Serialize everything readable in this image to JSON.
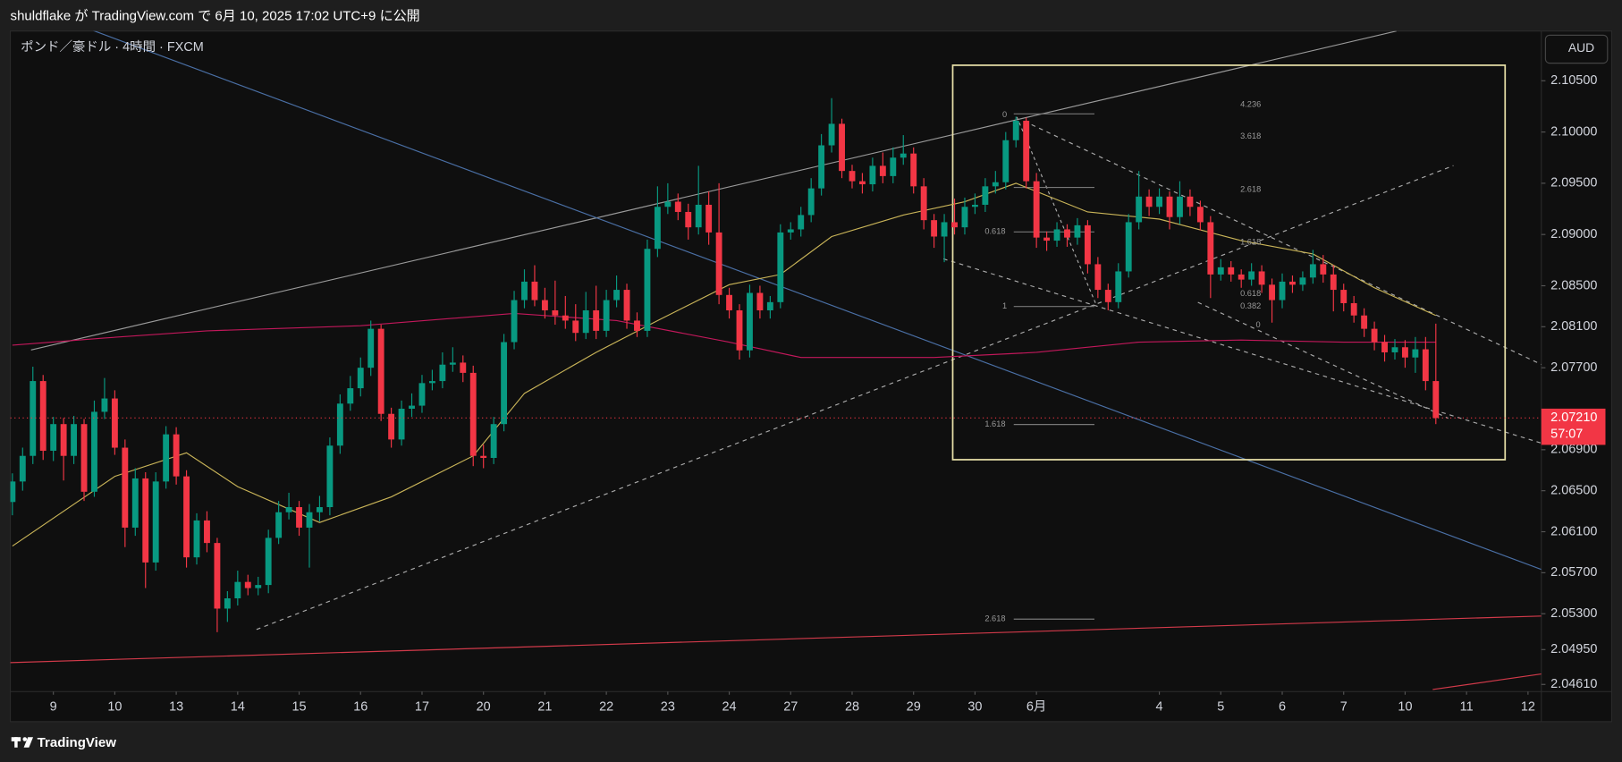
{
  "header": "shuldflake が TradingView.com で 6月 10, 2025 17:02 UTC+9 に公開",
  "symbol": "ポンド／豪ドル · 4時間 · FXCM",
  "currency": "AUD",
  "footer": "TradingView",
  "fib_labels": [
    "0",
    "0.618",
    "1",
    "1.618",
    "2.618",
    "4.236",
    "3.618",
    "2.618",
    "1.618",
    "0.618",
    "0.382",
    "0"
  ],
  "chart_data": {
    "type": "candlestick",
    "up_color": "#089981",
    "down_color": "#f23645",
    "grid": false,
    "ylim": [
      2.0454,
      2.10985
    ],
    "yticks": [
      {
        "value": 2.105,
        "label": "2.10500"
      },
      {
        "value": 2.1,
        "label": "2.10000"
      },
      {
        "value": 2.095,
        "label": "2.09500"
      },
      {
        "value": 2.09,
        "label": "2.09000"
      },
      {
        "value": 2.085,
        "label": "2.08500"
      },
      {
        "value": 2.081,
        "label": "2.08100"
      },
      {
        "value": 2.077,
        "label": "2.07700"
      },
      {
        "value": 2.069,
        "label": "2.06900"
      },
      {
        "value": 2.065,
        "label": "2.06500"
      },
      {
        "value": 2.061,
        "label": "2.06100"
      },
      {
        "value": 2.057,
        "label": "2.05700"
      },
      {
        "value": 2.053,
        "label": "2.05300"
      },
      {
        "value": 2.0495,
        "label": "2.04950"
      },
      {
        "value": 2.0461,
        "label": "2.04610"
      }
    ],
    "xlim": [
      -0.2,
      149.3
    ],
    "xticks": [
      {
        "value": 4,
        "label": "9"
      },
      {
        "value": 10,
        "label": "10"
      },
      {
        "value": 16,
        "label": "13"
      },
      {
        "value": 22,
        "label": "14"
      },
      {
        "value": 28,
        "label": "15"
      },
      {
        "value": 34,
        "label": "16"
      },
      {
        "value": 40,
        "label": "17"
      },
      {
        "value": 46,
        "label": "20"
      },
      {
        "value": 52,
        "label": "21"
      },
      {
        "value": 58,
        "label": "22"
      },
      {
        "value": 64,
        "label": "23"
      },
      {
        "value": 70,
        "label": "24"
      },
      {
        "value": 76,
        "label": "27"
      },
      {
        "value": 82,
        "label": "28"
      },
      {
        "value": 88,
        "label": "29"
      },
      {
        "value": 94,
        "label": "30"
      },
      {
        "value": 100,
        "label": "6月"
      },
      {
        "value": 112,
        "label": "4"
      },
      {
        "value": 118,
        "label": "5"
      },
      {
        "value": 124,
        "label": "6"
      },
      {
        "value": 130,
        "label": "7"
      },
      {
        "value": 136,
        "label": "10"
      },
      {
        "value": 142,
        "label": "11"
      },
      {
        "value": 148,
        "label": "12"
      }
    ],
    "last_price": 2.0721,
    "last_price_label": "2.07210",
    "countdown": "57:07",
    "last_price_color": "#f23645",
    "candles": [
      [
        2.0639,
        2.0667,
        2.0626,
        2.0659
      ],
      [
        2.0659,
        2.0692,
        2.065,
        2.0684
      ],
      [
        2.0684,
        2.0771,
        2.0676,
        2.0757
      ],
      [
        2.0757,
        2.0763,
        2.068,
        2.0689
      ],
      [
        2.0689,
        2.0722,
        2.0679,
        2.0715
      ],
      [
        2.0715,
        2.0721,
        2.066,
        2.0684
      ],
      [
        2.0684,
        2.0723,
        2.0676,
        2.0715
      ],
      [
        2.0715,
        2.072,
        2.064,
        2.0649
      ],
      [
        2.0649,
        2.0738,
        2.0644,
        2.0727
      ],
      [
        2.0727,
        2.076,
        2.072,
        2.074
      ],
      [
        2.074,
        2.0748,
        2.0685,
        2.0692
      ],
      [
        2.0692,
        2.07,
        2.0595,
        2.0614
      ],
      [
        2.0614,
        2.0672,
        2.0606,
        2.0662
      ],
      [
        2.0662,
        2.0668,
        2.0555,
        2.058
      ],
      [
        2.058,
        2.0668,
        2.0572,
        2.0659
      ],
      [
        2.0659,
        2.0713,
        2.0652,
        2.0705
      ],
      [
        2.0705,
        2.0712,
        2.0656,
        2.0664
      ],
      [
        2.0664,
        2.067,
        2.0575,
        2.0585
      ],
      [
        2.0585,
        2.0628,
        2.0578,
        2.0621
      ],
      [
        2.0621,
        2.063,
        2.059,
        2.0599
      ],
      [
        2.0599,
        2.0604,
        2.0512,
        2.0535
      ],
      [
        2.0535,
        2.0552,
        2.0522,
        2.0545
      ],
      [
        2.0545,
        2.0572,
        2.0538,
        2.0561
      ],
      [
        2.0561,
        2.0568,
        2.0548,
        2.0555
      ],
      [
        2.0555,
        2.0566,
        2.0548,
        2.0558
      ],
      [
        2.0558,
        2.0612,
        2.055,
        2.0604
      ],
      [
        2.0604,
        2.064,
        2.0598,
        2.0629
      ],
      [
        2.0629,
        2.0648,
        2.0622,
        2.0634
      ],
      [
        2.0634,
        2.064,
        2.0606,
        2.0614
      ],
      [
        2.0614,
        2.0637,
        2.0575,
        2.0629
      ],
      [
        2.0629,
        2.0645,
        2.062,
        2.0634
      ],
      [
        2.0634,
        2.0702,
        2.0626,
        2.0694
      ],
      [
        2.0694,
        2.0744,
        2.0686,
        2.0735
      ],
      [
        2.0735,
        2.0762,
        2.0728,
        2.075
      ],
      [
        2.075,
        2.078,
        2.0742,
        2.077
      ],
      [
        2.077,
        2.0816,
        2.0762,
        2.0808
      ],
      [
        2.0808,
        2.0812,
        2.0718,
        2.0725
      ],
      [
        2.0725,
        2.0731,
        2.0692,
        2.07
      ],
      [
        2.07,
        2.0738,
        2.0694,
        2.073
      ],
      [
        2.073,
        2.0745,
        2.0722,
        2.0733
      ],
      [
        2.0733,
        2.0763,
        2.0726,
        2.0755
      ],
      [
        2.0755,
        2.0768,
        2.0748,
        2.0757
      ],
      [
        2.0757,
        2.0785,
        2.075,
        2.0773
      ],
      [
        2.0773,
        2.079,
        2.0766,
        2.0775
      ],
      [
        2.0775,
        2.0782,
        2.0756,
        2.0765
      ],
      [
        2.0765,
        2.0772,
        2.0674,
        2.0684
      ],
      [
        2.0684,
        2.0695,
        2.0672,
        2.0682
      ],
      [
        2.0682,
        2.0722,
        2.0676,
        2.0715
      ],
      [
        2.0715,
        2.0803,
        2.0708,
        2.0795
      ],
      [
        2.0795,
        2.0845,
        2.0788,
        2.0836
      ],
      [
        2.0836,
        2.0866,
        2.0828,
        2.0854
      ],
      [
        2.0854,
        2.087,
        2.083,
        2.0836
      ],
      [
        2.0836,
        2.0848,
        2.0818,
        2.0826
      ],
      [
        2.0826,
        2.0855,
        2.0812,
        2.0821
      ],
      [
        2.0821,
        2.084,
        2.0808,
        2.0816
      ],
      [
        2.0816,
        2.0832,
        2.0796,
        2.0804
      ],
      [
        2.0804,
        2.0844,
        2.0798,
        2.0826
      ],
      [
        2.0826,
        2.085,
        2.0798,
        2.0806
      ],
      [
        2.0806,
        2.0846,
        2.08,
        2.0836
      ],
      [
        2.0836,
        2.086,
        2.0829,
        2.0846
      ],
      [
        2.0846,
        2.0852,
        2.0808,
        2.0816
      ],
      [
        2.0816,
        2.0824,
        2.08,
        2.0806
      ],
      [
        2.0806,
        2.0895,
        2.08,
        2.0886
      ],
      [
        2.0886,
        2.0947,
        2.0878,
        2.0927
      ],
      [
        2.0927,
        2.095,
        2.092,
        2.0932
      ],
      [
        2.0932,
        2.094,
        2.0914,
        2.0922
      ],
      [
        2.0922,
        2.093,
        2.0895,
        2.0907
      ],
      [
        2.0907,
        2.0967,
        2.09,
        2.0929
      ],
      [
        2.0929,
        2.0942,
        2.089,
        2.0902
      ],
      [
        2.0902,
        2.095,
        2.0832,
        2.0841
      ],
      [
        2.0841,
        2.0848,
        2.0818,
        2.0826
      ],
      [
        2.0826,
        2.0832,
        2.0778,
        2.0787
      ],
      [
        2.0787,
        2.0851,
        2.078,
        2.0843
      ],
      [
        2.0843,
        2.085,
        2.0818,
        2.0826
      ],
      [
        2.0826,
        2.084,
        2.0818,
        2.0834
      ],
      [
        2.0834,
        2.091,
        2.0828,
        2.0902
      ],
      [
        2.0902,
        2.0912,
        2.0895,
        2.0905
      ],
      [
        2.0905,
        2.0927,
        2.0898,
        2.0919
      ],
      [
        2.0919,
        2.0955,
        2.0912,
        2.0945
      ],
      [
        2.0945,
        2.0998,
        2.0938,
        2.0987
      ],
      [
        2.0987,
        2.1033,
        2.098,
        2.1008
      ],
      [
        2.1008,
        2.1013,
        2.0955,
        2.0962
      ],
      [
        2.0962,
        2.0968,
        2.0945,
        2.0952
      ],
      [
        2.0952,
        2.096,
        2.094,
        2.0949
      ],
      [
        2.0949,
        2.0975,
        2.0942,
        2.0967
      ],
      [
        2.0967,
        2.098,
        2.095,
        2.0957
      ],
      [
        2.0957,
        2.0985,
        2.095,
        2.0975
      ],
      [
        2.0975,
        2.0997,
        2.0968,
        2.0979
      ],
      [
        2.0979,
        2.0985,
        2.094,
        2.0947
      ],
      [
        2.0947,
        2.0955,
        2.0905,
        2.0914
      ],
      [
        2.0914,
        2.092,
        2.0887,
        2.0898
      ],
      [
        2.0898,
        2.092,
        2.0873,
        2.0912
      ],
      [
        2.0912,
        2.0935,
        2.09,
        2.0907
      ],
      [
        2.0907,
        2.0936,
        2.09,
        2.0927
      ],
      [
        2.0927,
        2.094,
        2.092,
        2.0929
      ],
      [
        2.0929,
        2.0955,
        2.0922,
        2.0947
      ],
      [
        2.0947,
        2.0962,
        2.094,
        2.0951
      ],
      [
        2.0951,
        2.1,
        2.0944,
        2.0992
      ],
      [
        2.0992,
        2.1015,
        2.0985,
        2.1011
      ],
      [
        2.1011,
        2.1014,
        2.0945,
        2.0952
      ],
      [
        2.0952,
        2.096,
        2.0887,
        2.0897
      ],
      [
        2.0897,
        2.0903,
        2.0884,
        2.0894
      ],
      [
        2.0894,
        2.0912,
        2.0888,
        2.0905
      ],
      [
        2.0905,
        2.091,
        2.0888,
        2.0897
      ],
      [
        2.0897,
        2.0916,
        2.089,
        2.0909
      ],
      [
        2.0909,
        2.0914,
        2.0862,
        2.0871
      ],
      [
        2.0871,
        2.0878,
        2.0838,
        2.0846
      ],
      [
        2.0846,
        2.0852,
        2.0826,
        2.0834
      ],
      [
        2.0834,
        2.0872,
        2.0828,
        2.0864
      ],
      [
        2.0864,
        2.092,
        2.0858,
        2.0912
      ],
      [
        2.0912,
        2.0962,
        2.0905,
        2.0937
      ],
      [
        2.0937,
        2.0944,
        2.0918,
        2.0927
      ],
      [
        2.0927,
        2.0945,
        2.092,
        2.0937
      ],
      [
        2.0937,
        2.0942,
        2.0905,
        2.0917
      ],
      [
        2.0917,
        2.0952,
        2.091,
        2.0937
      ],
      [
        2.0937,
        2.0944,
        2.0918,
        2.0927
      ],
      [
        2.0927,
        2.0933,
        2.0904,
        2.0912
      ],
      [
        2.0912,
        2.0918,
        2.0838,
        2.0861
      ],
      [
        2.0861,
        2.0876,
        2.0855,
        2.0868
      ],
      [
        2.0868,
        2.0874,
        2.0854,
        2.0861
      ],
      [
        2.0861,
        2.0866,
        2.0848,
        2.0856
      ],
      [
        2.0856,
        2.0872,
        2.085,
        2.0864
      ],
      [
        2.0864,
        2.087,
        2.0843,
        2.0851
      ],
      [
        2.0851,
        2.0857,
        2.0814,
        2.0836
      ],
      [
        2.0836,
        2.0862,
        2.0828,
        2.0854
      ],
      [
        2.0854,
        2.086,
        2.0843,
        2.0851
      ],
      [
        2.0851,
        2.0864,
        2.0845,
        2.0858
      ],
      [
        2.0858,
        2.0885,
        2.0852,
        2.0871
      ],
      [
        2.0871,
        2.088,
        2.0853,
        2.0861
      ],
      [
        2.0861,
        2.087,
        2.0825,
        2.0846
      ],
      [
        2.0846,
        2.0852,
        2.0825,
        2.0833
      ],
      [
        2.0833,
        2.084,
        2.0814,
        2.0821
      ],
      [
        2.0821,
        2.0828,
        2.08,
        2.0808
      ],
      [
        2.0808,
        2.0815,
        2.0787,
        2.0795
      ],
      [
        2.0795,
        2.0802,
        2.0776,
        2.0785
      ],
      [
        2.0785,
        2.0798,
        2.0778,
        2.079
      ],
      [
        2.079,
        2.0797,
        2.077,
        2.078
      ],
      [
        2.078,
        2.08,
        2.0765,
        2.0788
      ],
      [
        2.0788,
        2.08,
        2.0748,
        2.0757
      ],
      [
        2.0757,
        2.0813,
        2.0715,
        2.0721
      ]
    ],
    "moving_averages": [
      {
        "color": "#c9b458",
        "x": [
          0,
          10,
          17,
          22,
          30,
          37,
          45,
          50,
          57,
          63,
          70,
          75,
          80,
          87,
          93,
          98,
          105,
          112,
          120,
          127,
          133,
          139
        ],
        "values": [
          2.0596,
          2.0664,
          2.0687,
          2.0654,
          2.0619,
          2.0644,
          2.0684,
          2.0745,
          2.0785,
          2.0816,
          2.0851,
          2.0861,
          2.0898,
          2.0919,
          2.0932,
          2.095,
          2.0922,
          2.0915,
          2.0894,
          2.0881,
          2.0848,
          2.0821
        ]
      },
      {
        "color": "#c2185b",
        "x": [
          0,
          9,
          19,
          34,
          49,
          59,
          70,
          77,
          90,
          100,
          110,
          120,
          130,
          139
        ],
        "values": [
          2.0792,
          2.0799,
          2.0806,
          2.0811,
          2.0823,
          2.0816,
          2.0795,
          2.078,
          2.078,
          2.0785,
          2.0795,
          2.0797,
          2.0795,
          2.0795
        ]
      }
    ]
  }
}
